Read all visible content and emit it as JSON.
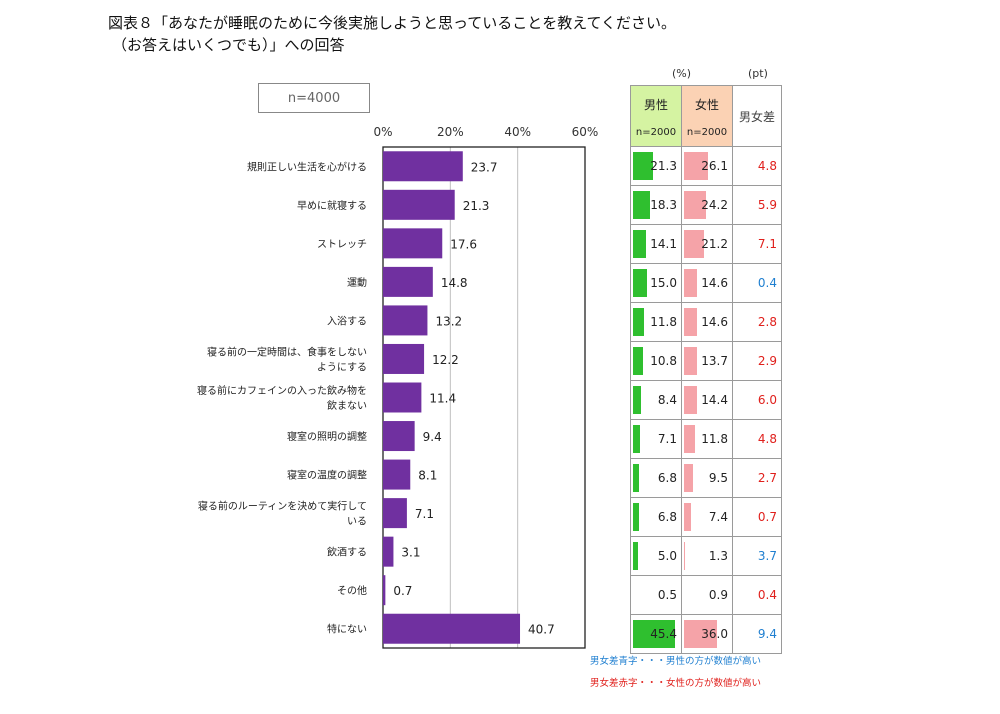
{
  "title": {
    "line1": "図表８「あなたが睡眠のために今後実施しようと思っていることを教えてください。",
    "line2": "（お答えはいくつでも）」への回答"
  },
  "sample_label": "n=4000",
  "units": {
    "percent": "(%)",
    "points": "(pt)"
  },
  "table_header": {
    "male": "男性",
    "female": "女性",
    "diff": "男女差",
    "male_n": "n=2000",
    "female_n": "n=2000"
  },
  "notes": {
    "blue": "男女差青字・・・男性の方が数値が高い",
    "red": "男女差赤字・・・女性の方が数値が高い"
  },
  "colors": {
    "bar": "#7030a0",
    "male_bar": "#2fbf2f",
    "female_bar": "#f5a3a8",
    "male_header": "#d5f3a2",
    "female_header": "#fbd2b4",
    "diff_red": "#e0201c",
    "diff_blue": "#1f7fd0"
  },
  "chart_data": {
    "type": "bar",
    "orientation": "horizontal",
    "xlim": [
      0,
      60
    ],
    "ticks": [
      "0%",
      "20%",
      "40%",
      "60%"
    ],
    "categories": [
      [
        "規則正しい生活を心がける"
      ],
      [
        "早めに就寝する"
      ],
      [
        "ストレッチ"
      ],
      [
        "運動"
      ],
      [
        "入浴する"
      ],
      [
        "寝る前の一定時間は、食事をしない",
        "ようにする"
      ],
      [
        "寝る前にカフェインの入った飲み物を",
        "飲まない"
      ],
      [
        "寝室の照明の調整"
      ],
      [
        "寝室の温度の調整"
      ],
      [
        "寝る前のルーティンを決めて実行して",
        "いる"
      ],
      [
        "飲酒する"
      ],
      [
        "その他"
      ],
      [
        "特にない"
      ]
    ],
    "values": [
      23.7,
      21.3,
      17.6,
      14.8,
      13.2,
      12.2,
      11.4,
      9.4,
      8.1,
      7.1,
      3.1,
      0.7,
      40.7
    ],
    "labels": [
      "23.7",
      "21.3",
      "17.6",
      "14.8",
      "13.2",
      "12.2",
      "11.4",
      "9.4",
      "8.1",
      "7.1",
      "3.1",
      "0.7",
      "40.7"
    ],
    "gridlines": true
  },
  "table_rows": [
    {
      "male": "21.3",
      "female": "26.1",
      "diff": "4.8",
      "diff_color": "red"
    },
    {
      "male": "18.3",
      "female": "24.2",
      "diff": "5.9",
      "diff_color": "red"
    },
    {
      "male": "14.1",
      "female": "21.2",
      "diff": "7.1",
      "diff_color": "red"
    },
    {
      "male": "15.0",
      "female": "14.6",
      "diff": "0.4",
      "diff_color": "blue"
    },
    {
      "male": "11.8",
      "female": "14.6",
      "diff": "2.8",
      "diff_color": "red"
    },
    {
      "male": "10.8",
      "female": "13.7",
      "diff": "2.9",
      "diff_color": "red"
    },
    {
      "male": "8.4",
      "female": "14.4",
      "diff": "6.0",
      "diff_color": "red"
    },
    {
      "male": "7.1",
      "female": "11.8",
      "diff": "4.8",
      "diff_color": "red"
    },
    {
      "male": "6.8",
      "female": "9.5",
      "diff": "2.7",
      "diff_color": "red"
    },
    {
      "male": "6.8",
      "female": "7.4",
      "diff": "0.7",
      "diff_color": "red"
    },
    {
      "male": "5.0",
      "female": "1.3",
      "diff": "3.7",
      "diff_color": "blue"
    },
    {
      "male": "0.5",
      "female": "0.9",
      "diff": "0.4",
      "diff_color": "red"
    },
    {
      "male": "45.4",
      "female": "36.0",
      "diff": "9.4",
      "diff_color": "blue"
    }
  ]
}
